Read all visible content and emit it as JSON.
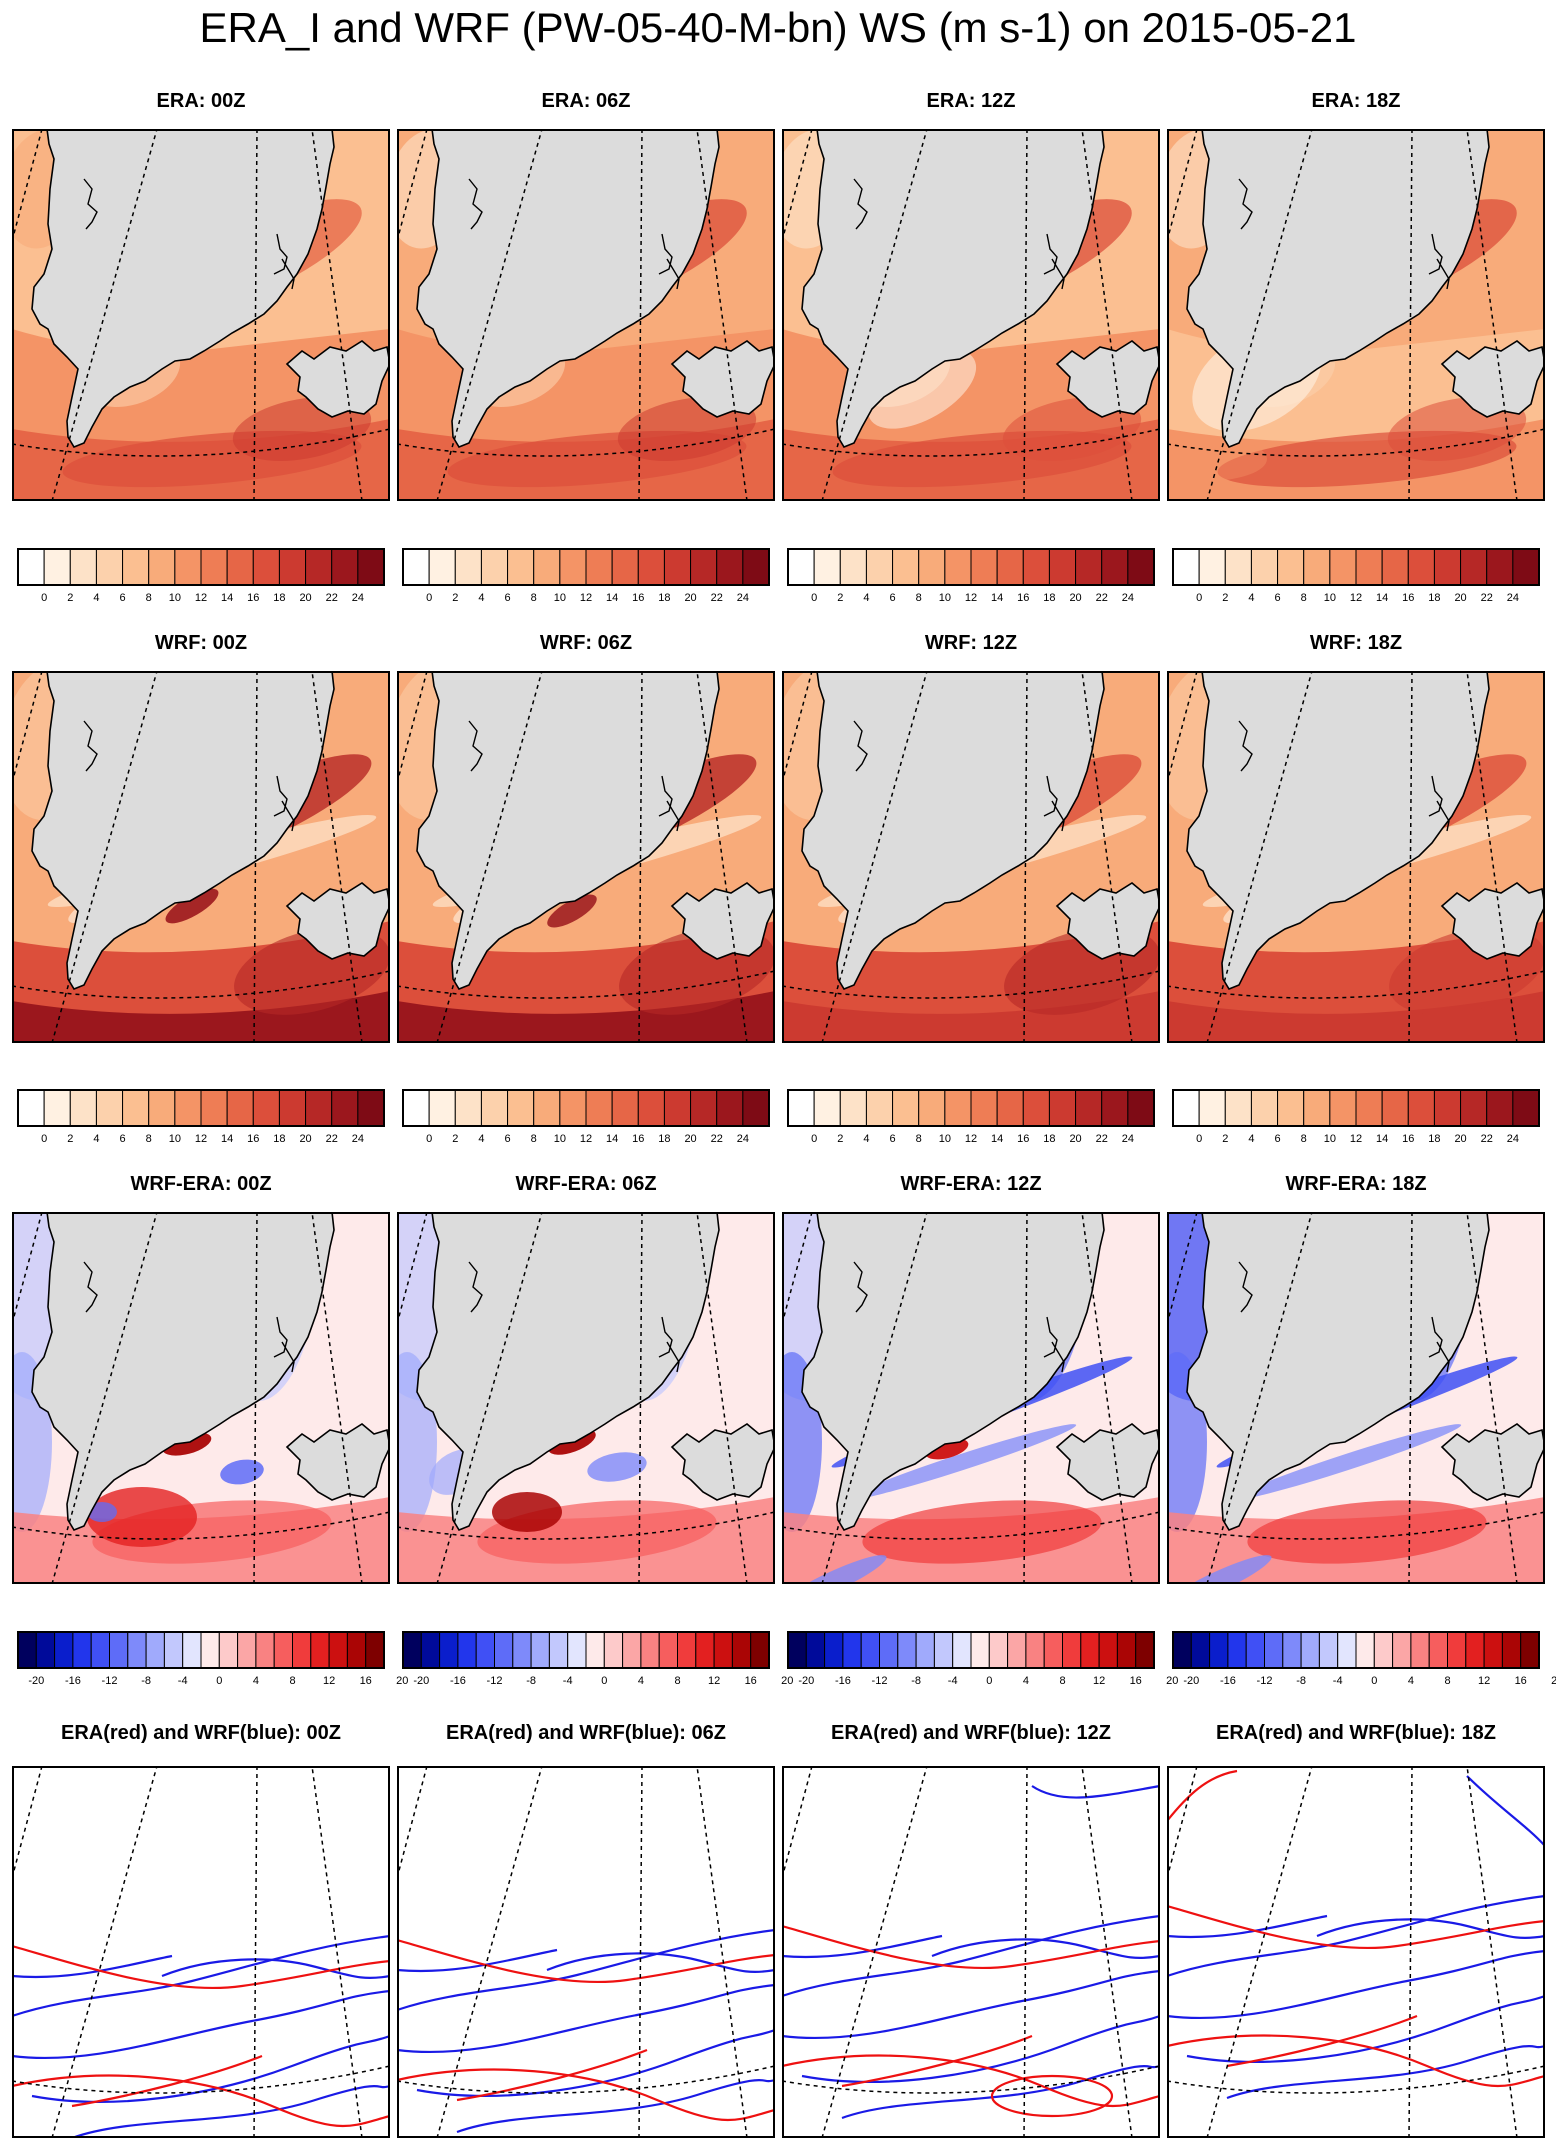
{
  "title": "ERA_I and WRF (PW-05-40-M-bn) WS (m s-1) on 2015-05-21",
  "rows": [
    {
      "type": "era",
      "panel_titles": [
        "ERA: 00Z",
        "ERA: 06Z",
        "ERA: 12Z",
        "ERA: 18Z"
      ],
      "colorbar": "ws"
    },
    {
      "type": "wrf",
      "panel_titles": [
        "WRF: 00Z",
        "WRF: 06Z",
        "WRF: 12Z",
        "WRF: 18Z"
      ],
      "colorbar": "ws"
    },
    {
      "type": "diff",
      "panel_titles": [
        "WRF-ERA: 00Z",
        "WRF-ERA: 06Z",
        "WRF-ERA: 12Z",
        "WRF-ERA: 18Z"
      ],
      "colorbar": "diff"
    },
    {
      "type": "contour",
      "panel_titles": [
        "ERA(red) and WRF(blue): 00Z",
        "ERA(red) and WRF(blue): 06Z",
        "ERA(red) and WRF(blue): 12Z",
        "ERA(red) and WRF(blue): 18Z"
      ],
      "colorbar": null
    }
  ],
  "colorbars": {
    "ws": {
      "labels": [
        "0",
        "2",
        "4",
        "6",
        "8",
        "10",
        "12",
        "14",
        "16",
        "18",
        "20",
        "22",
        "24"
      ],
      "colors": [
        "#ffffff",
        "#fff1e2",
        "#fde2c8",
        "#fcd1ac",
        "#fbbf91",
        "#f8ab7a",
        "#f49466",
        "#ee7d55",
        "#e66647",
        "#dc4f3b",
        "#cc3a30",
        "#b62826",
        "#9b171d",
        "#7e0b15"
      ]
    },
    "diff": {
      "labels": [
        "-20",
        "-16",
        "-12",
        "-8",
        "-4",
        "0",
        "4",
        "8",
        "12",
        "16",
        "20"
      ],
      "colors": [
        "#00005e",
        "#000a9a",
        "#0a1ecc",
        "#2236ec",
        "#4050f5",
        "#5e6cf8",
        "#7e8afa",
        "#a0aafc",
        "#c2c8fd",
        "#e2e5fe",
        "#feeaea",
        "#fdcaca",
        "#fba6a6",
        "#f98282",
        "#f65e5e",
        "#f03c3c",
        "#e32020",
        "#cc1010",
        "#aa0505",
        "#7e0000"
      ]
    }
  },
  "colors": {
    "land": "#dcdcdc",
    "era_contour": "#ee1111",
    "wrf_contour": "#1a1ae6"
  }
}
